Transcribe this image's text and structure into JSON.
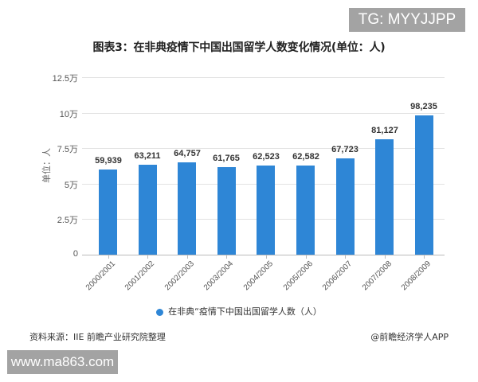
{
  "badges": {
    "top_right": "TG: MYYJJPP",
    "bottom_left": "www.ma863.com"
  },
  "chart_data": {
    "type": "bar",
    "title": "图表3：在非典疫情下中国出国留学人数变化情况(单位：人)",
    "xlabel": "",
    "ylabel": "单位：人",
    "categories": [
      "2000/2001",
      "2001/2002",
      "2002/2003",
      "2003/2004",
      "2004/2005",
      "2005/2006",
      "2006/2007",
      "2007/2008",
      "2008/2009"
    ],
    "values": [
      59939,
      63211,
      64757,
      61765,
      62523,
      62582,
      67723,
      81127,
      98235
    ],
    "value_labels": [
      "59,939",
      "63,211",
      "64,757",
      "61,765",
      "62,523",
      "62,582",
      "67,723",
      "81,127",
      "98,235"
    ],
    "series": [
      {
        "name": "在非典疫情下中国出国留学人数(人)",
        "color": "#2e86d6",
        "values": [
          59939,
          63211,
          64757,
          61765,
          62523,
          62582,
          67723,
          81127,
          98235
        ]
      }
    ],
    "yticks": [
      "0",
      "2.5万",
      "5万",
      "7.5万",
      "10万",
      "12.5万"
    ],
    "ylim": [
      0,
      125000
    ],
    "grid": true,
    "legend_position": "bottom"
  },
  "legend": {
    "label": "在非典“疫情下中国出国留学人数（人）"
  },
  "footer": {
    "source": "资料来源：IIE 前瞻产业研究院整理",
    "credit": "@前瞻经济学人APP"
  }
}
